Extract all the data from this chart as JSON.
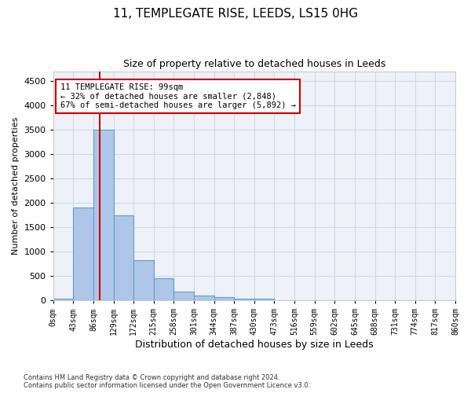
{
  "title1": "11, TEMPLEGATE RISE, LEEDS, LS15 0HG",
  "title2": "Size of property relative to detached houses in Leeds",
  "xlabel": "Distribution of detached houses by size in Leeds",
  "ylabel": "Number of detached properties",
  "annotation_line1": "11 TEMPLEGATE RISE: 99sqm",
  "annotation_line2": "← 32% of detached houses are smaller (2,848)",
  "annotation_line3": "67% of semi-detached houses are larger (5,892) →",
  "property_size": 99,
  "bin_edges": [
    0,
    43,
    86,
    129,
    172,
    215,
    258,
    301,
    344,
    387,
    430,
    473,
    516,
    559,
    602,
    645,
    688,
    731,
    774,
    817,
    860
  ],
  "bar_values": [
    30,
    1900,
    3500,
    1750,
    830,
    450,
    175,
    100,
    70,
    40,
    30,
    0,
    0,
    0,
    0,
    0,
    0,
    0,
    0,
    0
  ],
  "bar_color": "#aec6e8",
  "bar_edge_color": "#5a9fd4",
  "vline_color": "#cc0000",
  "grid_color": "#d0d8e8",
  "bg_color": "#eef2f8",
  "ylim": [
    0,
    4700
  ],
  "yticks": [
    0,
    500,
    1000,
    1500,
    2000,
    2500,
    3000,
    3500,
    4000,
    4500
  ],
  "tick_labels": [
    "0sqm",
    "43sqm",
    "86sqm",
    "129sqm",
    "172sqm",
    "215sqm",
    "258sqm",
    "301sqm",
    "344sqm",
    "387sqm",
    "430sqm",
    "473sqm",
    "516sqm",
    "559sqm",
    "602sqm",
    "645sqm",
    "688sqm",
    "731sqm",
    "774sqm",
    "817sqm",
    "860sqm"
  ],
  "footer_line1": "Contains HM Land Registry data © Crown copyright and database right 2024.",
  "footer_line2": "Contains public sector information licensed under the Open Government Licence v3.0.",
  "annotation_box_color": "#cc0000",
  "title1_fontsize": 11,
  "title2_fontsize": 9
}
